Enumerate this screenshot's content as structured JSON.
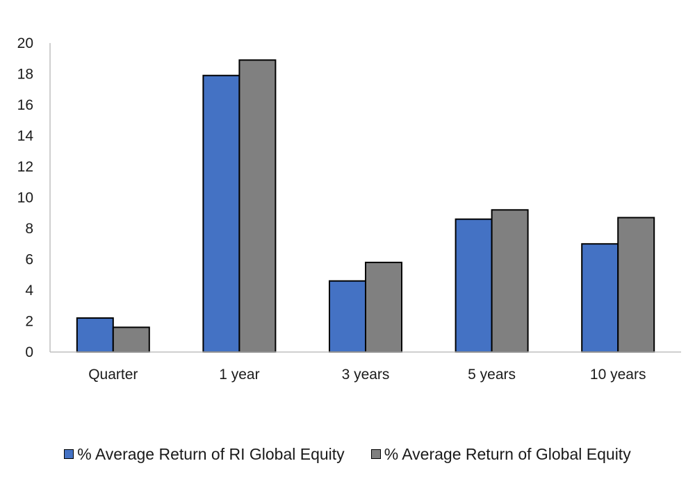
{
  "chart_data": {
    "type": "bar",
    "categories": [
      "Quarter",
      "1 year",
      "3 years",
      "5 years",
      "10 years"
    ],
    "series": [
      {
        "name": "% Average Return of RI Global Equity",
        "color": "#4472c4",
        "values": [
          2.2,
          17.9,
          4.6,
          8.6,
          7.0
        ]
      },
      {
        "name": "% Average Return of Global Equity",
        "color": "#808080",
        "values": [
          1.6,
          18.9,
          5.8,
          9.2,
          8.7
        ]
      }
    ],
    "yticks": [
      "0",
      "2",
      "4",
      "6",
      "8",
      "10",
      "12",
      "14",
      "16",
      "18",
      "20"
    ],
    "ylim": [
      0,
      20
    ],
    "title": "",
    "xlabel": "",
    "ylabel": "",
    "grid": false,
    "legend_position": "bottom"
  }
}
